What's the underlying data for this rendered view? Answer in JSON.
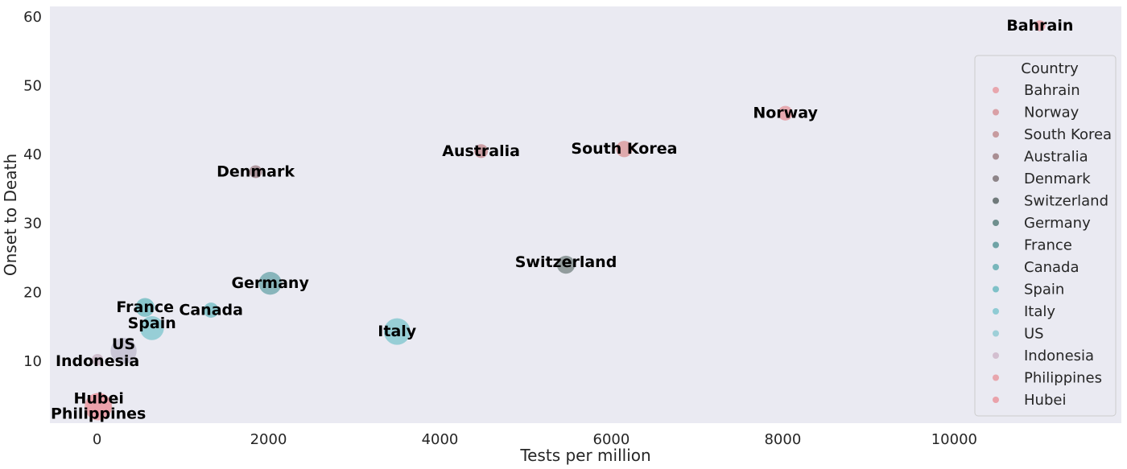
{
  "chart_data": {
    "type": "scatter",
    "xlabel": "Tests per million",
    "ylabel": "Onset to Death",
    "xlim": [
      -550,
      11950
    ],
    "ylim": [
      1,
      61.5
    ],
    "xticks": [
      0,
      2000,
      4000,
      6000,
      8000,
      10000
    ],
    "yticks": [
      10,
      20,
      30,
      40,
      50,
      60
    ],
    "grid": false,
    "legend": {
      "title": "Country",
      "placement": "right"
    },
    "points": [
      {
        "name": "Bahrain",
        "x": 11000,
        "y": 58.7,
        "size": 0.8,
        "color": "#e8a6ad"
      },
      {
        "name": "Norway",
        "x": 8030,
        "y": 46.0,
        "size": 2.2,
        "color": "#e5a3aa"
      },
      {
        "name": "South Korea",
        "x": 6150,
        "y": 40.8,
        "size": 3.0,
        "color": "#dca3a6"
      },
      {
        "name": "Australia",
        "x": 4480,
        "y": 40.5,
        "size": 1.8,
        "color": "#c9989e"
      },
      {
        "name": "Denmark",
        "x": 1850,
        "y": 37.5,
        "size": 1.4,
        "color": "#a99098"
      },
      {
        "name": "Switzerland",
        "x": 5470,
        "y": 24.0,
        "size": 4.0,
        "color": "#8a9596"
      },
      {
        "name": "Germany",
        "x": 2020,
        "y": 21.3,
        "size": 7.5,
        "color": "#7fb0b6"
      },
      {
        "name": "France",
        "x": 560,
        "y": 17.8,
        "size": 4.5,
        "color": "#7fc1c8"
      },
      {
        "name": "Canada",
        "x": 1330,
        "y": 17.4,
        "size": 2.4,
        "color": "#84c3cb"
      },
      {
        "name": "Spain",
        "x": 640,
        "y": 14.8,
        "size": 8.5,
        "color": "#8fcbd4"
      },
      {
        "name": "Italy",
        "x": 3500,
        "y": 14.3,
        "size": 11.0,
        "color": "#8fcbd4"
      },
      {
        "name": "US",
        "x": 310,
        "y": 11.5,
        "size": 10.5,
        "color": "#c6c2d4"
      },
      {
        "name": "Indonesia",
        "x": 5,
        "y": 10.2,
        "size": 1.0,
        "color": "#cdbccb"
      },
      {
        "name": "Philippines",
        "x": 15,
        "y": 3.4,
        "size": 12.0,
        "color": "#e8a6ad"
      },
      {
        "name": "Hubei",
        "x": 20,
        "y": 3.6,
        "size": 9.0,
        "color": "#ec9fa9"
      }
    ],
    "legend_items": [
      {
        "label": "Bahrain",
        "color": "#e8a6ad"
      },
      {
        "label": "Norway",
        "color": "#d9a0a6"
      },
      {
        "label": "South Korea",
        "color": "#c79b9f"
      },
      {
        "label": "Australia",
        "color": "#a98e93"
      },
      {
        "label": "Denmark",
        "color": "#8e8589"
      },
      {
        "label": "Switzerland",
        "color": "#707a7b"
      },
      {
        "label": "Germany",
        "color": "#6f8f8e"
      },
      {
        "label": "France",
        "color": "#6fa3a6"
      },
      {
        "label": "Canada",
        "color": "#78b6bb"
      },
      {
        "label": "Spain",
        "color": "#7fc1c8"
      },
      {
        "label": "Italy",
        "color": "#8fcbd4"
      },
      {
        "label": "US",
        "color": "#9ecfd8"
      },
      {
        "label": "Indonesia",
        "color": "#d3bfd0"
      },
      {
        "label": "Philippines",
        "color": "#e8a6ad"
      },
      {
        "label": "Hubei",
        "color": "#eaa2aa"
      }
    ],
    "colors": {
      "plot_background": "#eaeaf2",
      "legend_background": "#eaeaf2",
      "legend_border": "#cccccc"
    }
  }
}
